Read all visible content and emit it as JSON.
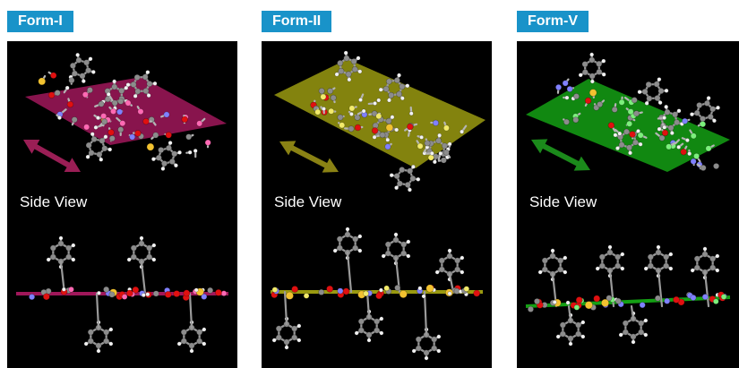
{
  "panels": [
    {
      "id": "form-1",
      "label": "Form-I",
      "side_view_label": "Side View",
      "plane_color": "#a0175a",
      "arrow_color": "#9a1e55",
      "accent_atom": "#ff69b4"
    },
    {
      "id": "form-2",
      "label": "Form-II",
      "side_view_label": "Side View",
      "plane_color": "#9a9a10",
      "arrow_color": "#8a8214",
      "accent_atom": "#f2ea6a"
    },
    {
      "id": "form-5",
      "label": "Form-V",
      "side_view_label": "Side View",
      "plane_color": "#14a014",
      "arrow_color": "#1b8a1b",
      "accent_atom": "#7cf07c"
    }
  ],
  "colors": {
    "tag_bg": "#1993c9",
    "tag_text": "#ffffff",
    "panel_bg": "#000000",
    "carbon": "#8c8c8c",
    "hydrogen": "#f2f2f2",
    "oxygen": "#e01010",
    "nitrogen": "#8080ff",
    "sulfur": "#f2c230"
  }
}
